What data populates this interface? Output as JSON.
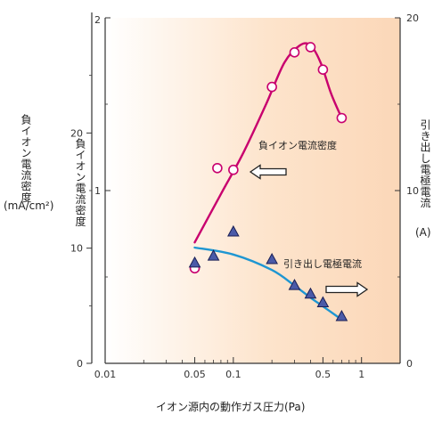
{
  "chart_data": {
    "type": "scatter",
    "x_scale": "log",
    "xlim": [
      0.01,
      2
    ],
    "xticks": [
      0.01,
      0.05,
      0.1,
      0.5,
      1
    ],
    "xtick_labels": [
      "0.01",
      "0.05",
      "0.1",
      "0.5",
      "1"
    ],
    "xlabel": "イオン源内の動作ガス圧力(Pa)",
    "y_outer": {
      "label": "負イオン電流密度",
      "unit": "(mA/cm²)",
      "lim": [
        0,
        30
      ],
      "ticks": [
        0,
        10,
        20
      ],
      "tick_labels": [
        "0",
        "10",
        "20"
      ]
    },
    "y_inner": {
      "label": "負イオン電流密度",
      "lim": [
        0,
        2
      ],
      "ticks": [
        1,
        2
      ],
      "tick_labels": [
        "1",
        "2"
      ]
    },
    "y_right": {
      "label": "引き出し電極電流",
      "unit": "(A)",
      "lim": [
        0,
        20
      ],
      "ticks": [
        0,
        10,
        20
      ],
      "tick_labels": [
        "0",
        "10",
        "20"
      ]
    },
    "series": [
      {
        "name": "負イオン電流密度",
        "axis": "y_inner",
        "marker": "circle",
        "color": "#c8006e",
        "points": [
          {
            "x": 0.05,
            "y": 0.55
          },
          {
            "x": 0.075,
            "y": 1.13
          },
          {
            "x": 0.1,
            "y": 1.12
          },
          {
            "x": 0.2,
            "y": 1.6
          },
          {
            "x": 0.3,
            "y": 1.8
          },
          {
            "x": 0.4,
            "y": 1.83
          },
          {
            "x": 0.5,
            "y": 1.7
          },
          {
            "x": 0.7,
            "y": 1.42
          }
        ],
        "fit": [
          {
            "x": 0.05,
            "y": 0.7
          },
          {
            "x": 0.08,
            "y": 0.98
          },
          {
            "x": 0.12,
            "y": 1.22
          },
          {
            "x": 0.18,
            "y": 1.5
          },
          {
            "x": 0.25,
            "y": 1.74
          },
          {
            "x": 0.33,
            "y": 1.84
          },
          {
            "x": 0.4,
            "y": 1.84
          },
          {
            "x": 0.48,
            "y": 1.74
          },
          {
            "x": 0.58,
            "y": 1.56
          },
          {
            "x": 0.7,
            "y": 1.42
          }
        ],
        "arrow": "left",
        "annotation": "負イオン電流密度"
      },
      {
        "name": "引き出し電極電流",
        "axis": "y_right",
        "marker": "triangle",
        "color": "#1e96d2",
        "points": [
          {
            "x": 0.05,
            "y": 5.8
          },
          {
            "x": 0.07,
            "y": 6.2
          },
          {
            "x": 0.1,
            "y": 7.6
          },
          {
            "x": 0.2,
            "y": 6.0
          },
          {
            "x": 0.3,
            "y": 4.5
          },
          {
            "x": 0.4,
            "y": 4.0
          },
          {
            "x": 0.5,
            "y": 3.5
          },
          {
            "x": 0.7,
            "y": 2.7
          }
        ],
        "fit": [
          {
            "x": 0.05,
            "y": 6.7
          },
          {
            "x": 0.1,
            "y": 6.3
          },
          {
            "x": 0.2,
            "y": 5.4
          },
          {
            "x": 0.3,
            "y": 4.5
          },
          {
            "x": 0.4,
            "y": 3.8
          },
          {
            "x": 0.5,
            "y": 3.3
          },
          {
            "x": 0.65,
            "y": 2.7
          }
        ],
        "arrow": "right",
        "annotation": "引き出し電極電流"
      }
    ],
    "colors": {
      "plot_background": "#fde4cc",
      "circle_fill": "#ffffff",
      "triangle_fill": "#4a5aa8",
      "triangle_stroke": "#1a1f55"
    }
  }
}
